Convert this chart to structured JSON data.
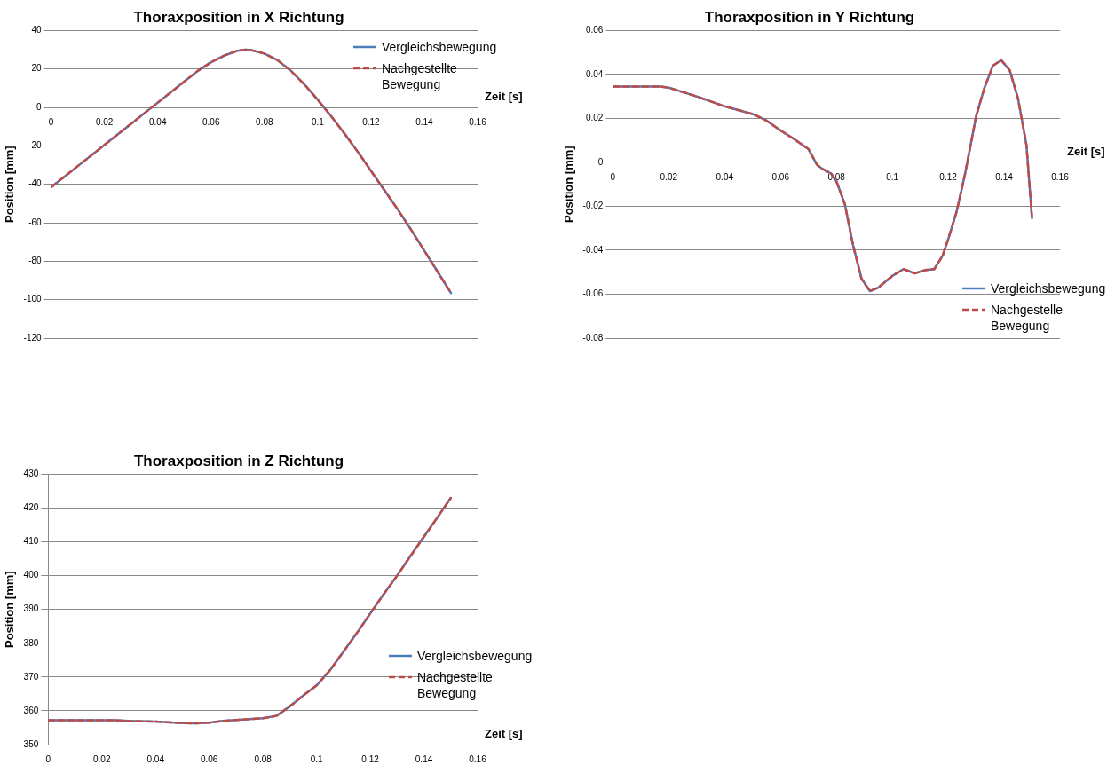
{
  "chart_data": [
    {
      "type": "line",
      "title": "Thoraxposition in X Richtung",
      "xlabel": "Zeit [s]",
      "ylabel": "Position [mm]",
      "xlim": [
        0,
        0.16
      ],
      "xticks": [
        0,
        0.02,
        0.04,
        0.06,
        0.08,
        0.1,
        0.12,
        0.14,
        0.16
      ],
      "ylim": [
        -120,
        40
      ],
      "yticks": [
        -120,
        -100,
        -80,
        -60,
        -40,
        -20,
        0,
        20,
        40
      ],
      "grid": "y",
      "legend": "top right",
      "marker": "none",
      "x": [
        0,
        0.01,
        0.02,
        0.03,
        0.04,
        0.05,
        0.055,
        0.06,
        0.065,
        0.07,
        0.073,
        0.075,
        0.08,
        0.085,
        0.09,
        0.095,
        0.1,
        0.105,
        0.11,
        0.115,
        0.12,
        0.125,
        0.13,
        0.135,
        0.14,
        0.145,
        0.15
      ],
      "series": [
        {
          "name": "Vergleichsbewegung",
          "color": "#4a7ebb",
          "line_style": "solid",
          "values": [
            -41.5,
            -30.5,
            -19.5,
            -8.5,
            2.5,
            13.5,
            19,
            23.5,
            27,
            29.5,
            30,
            29.8,
            28,
            24.5,
            19,
            12,
            4,
            -4.5,
            -13.5,
            -23,
            -33,
            -43,
            -53,
            -63.5,
            -74.5,
            -85.5,
            -96.5
          ]
        },
        {
          "name": "Nachgestellte Bewegung",
          "color": "#be4b48",
          "line_style": "dashed",
          "values": [
            -41.5,
            -30.5,
            -19.5,
            -8.5,
            2.5,
            13.5,
            19,
            23.5,
            27,
            29.5,
            30,
            29.8,
            28,
            24.5,
            19,
            12,
            4,
            -4.5,
            -13.5,
            -23,
            -33,
            -43,
            -53,
            -63.5,
            -74.5,
            -85.5,
            -96.5
          ]
        }
      ]
    },
    {
      "type": "line",
      "title": "Thoraxposition in Y Richtung",
      "xlabel": "Zeit [s]",
      "ylabel": "Position [mm]",
      "xlim": [
        0,
        0.16
      ],
      "xticks": [
        0,
        0.02,
        0.04,
        0.06,
        0.08,
        0.1,
        0.12,
        0.14,
        0.16
      ],
      "ylim": [
        -0.08,
        0.06
      ],
      "yticks": [
        -0.08,
        -0.06,
        -0.04,
        -0.02,
        0,
        0.02,
        0.04,
        0.06
      ],
      "grid": "y",
      "legend": "bottom right",
      "marker": "none",
      "x": [
        0,
        0.017,
        0.02,
        0.03,
        0.04,
        0.05,
        0.055,
        0.06,
        0.065,
        0.07,
        0.073,
        0.075,
        0.078,
        0.08,
        0.083,
        0.086,
        0.089,
        0.092,
        0.095,
        0.1,
        0.104,
        0.108,
        0.112,
        0.115,
        0.118,
        0.12,
        0.123,
        0.126,
        0.13,
        0.133,
        0.136,
        0.139,
        0.142,
        0.145,
        0.148,
        0.15
      ],
      "series": [
        {
          "name": "Vergleichsbewegung",
          "color": "#4a7ebb",
          "line_style": "solid",
          "values": [
            0.0345,
            0.0345,
            0.034,
            0.03,
            0.0255,
            0.022,
            0.019,
            0.0145,
            0.0105,
            0.006,
            -0.001,
            -0.003,
            -0.005,
            -0.0086,
            -0.019,
            -0.038,
            -0.053,
            -0.0586,
            -0.057,
            -0.0517,
            -0.0486,
            -0.0505,
            -0.049,
            -0.0486,
            -0.0425,
            -0.035,
            -0.0225,
            -0.0055,
            0.021,
            0.034,
            0.044,
            0.0465,
            0.042,
            0.029,
            0.008,
            -0.0255
          ]
        },
        {
          "name": "Nachgestelle Bewegung",
          "color": "#be4b48",
          "line_style": "dashed",
          "values": [
            0.0345,
            0.0345,
            0.034,
            0.03,
            0.0255,
            0.022,
            0.019,
            0.0145,
            0.0105,
            0.006,
            -0.001,
            -0.003,
            -0.005,
            -0.0086,
            -0.019,
            -0.038,
            -0.053,
            -0.0586,
            -0.057,
            -0.0517,
            -0.0486,
            -0.0505,
            -0.049,
            -0.0486,
            -0.0425,
            -0.035,
            -0.0225,
            -0.0055,
            0.021,
            0.034,
            0.044,
            0.0465,
            0.042,
            0.029,
            0.008,
            -0.0255
          ]
        }
      ]
    },
    {
      "type": "line",
      "title": "Thoraxposition in Z Richtung",
      "xlabel": "Zeit [s]",
      "ylabel": "Position [mm]",
      "xlim": [
        0,
        0.16
      ],
      "xticks": [
        0,
        0.02,
        0.04,
        0.06,
        0.08,
        0.1,
        0.12,
        0.14,
        0.16
      ],
      "ylim": [
        350,
        430
      ],
      "yticks": [
        350,
        360,
        370,
        380,
        390,
        400,
        410,
        420,
        430
      ],
      "grid": "y",
      "legend": "right",
      "marker": "none",
      "x": [
        0,
        0.025,
        0.03,
        0.04,
        0.05,
        0.055,
        0.06,
        0.065,
        0.07,
        0.08,
        0.085,
        0.09,
        0.095,
        0.1,
        0.105,
        0.11,
        0.115,
        0.12,
        0.125,
        0.13,
        0.135,
        0.14,
        0.145,
        0.15
      ],
      "series": [
        {
          "name": "Vergleichsbewegung",
          "color": "#4a7ebb",
          "line_style": "solid",
          "values": [
            357.2,
            357.2,
            357,
            356.8,
            356.4,
            356.3,
            356.5,
            357,
            357.3,
            357.8,
            358.5,
            361.3,
            364.5,
            367.5,
            372,
            377.5,
            383,
            388.8,
            394.5,
            400,
            405.8,
            411.5,
            417.2,
            423
          ]
        },
        {
          "name": "Nachgestellte Bewegung",
          "color": "#be4b48",
          "line_style": "dashed",
          "values": [
            357.2,
            357.2,
            357,
            356.8,
            356.4,
            356.3,
            356.5,
            357,
            357.3,
            357.8,
            358.5,
            361.3,
            364.5,
            367.5,
            372,
            377.5,
            383,
            388.8,
            394.5,
            400,
            405.8,
            411.5,
            417.2,
            423
          ]
        }
      ]
    }
  ]
}
